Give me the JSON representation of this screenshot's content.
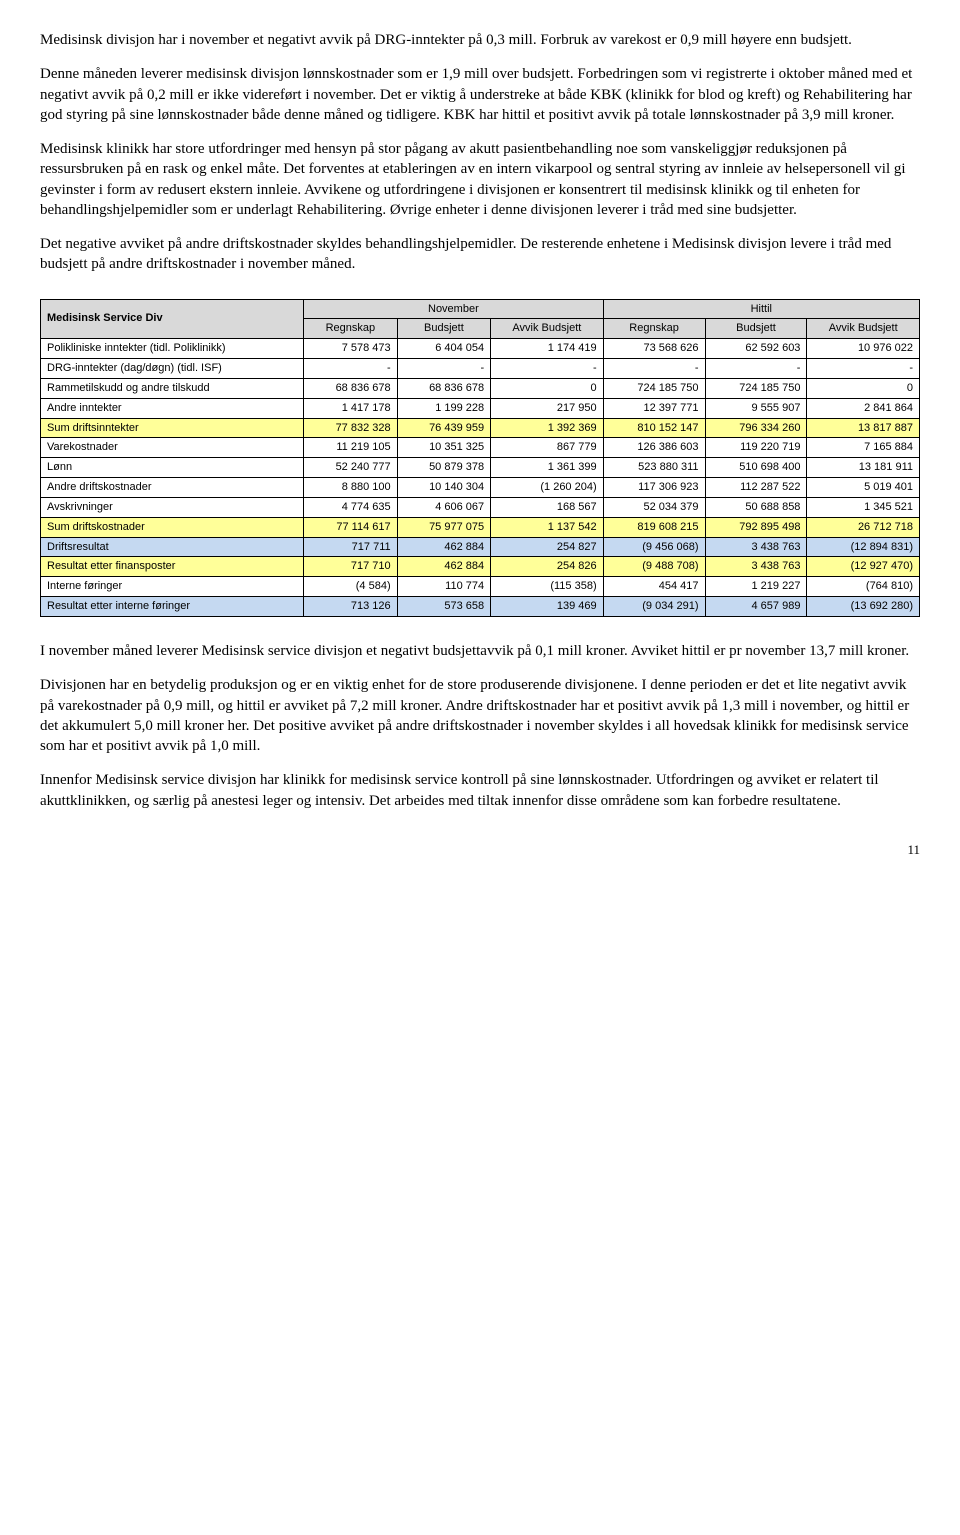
{
  "paragraphs": {
    "p1": "Medisinsk divisjon har i november et negativt avvik på DRG-inntekter på 0,3 mill. Forbruk av varekost er 0,9 mill høyere enn budsjett.",
    "p2": "Denne måneden leverer medisinsk divisjon lønnskostnader som er 1,9 mill over budsjett. Forbedringen som vi registrerte i oktober måned med et negativt avvik på 0,2 mill er ikke videreført i november. Det er viktig å understreke at både KBK (klinikk for blod og kreft) og Rehabilitering har god styring på sine lønnskostnader både denne måned og tidligere. KBK har hittil et positivt avvik på totale lønnskostnader på 3,9 mill kroner.",
    "p3": "Medisinsk klinikk har store utfordringer med hensyn på stor pågang av akutt pasientbehandling noe som vanskeliggjør reduksjonen på ressursbruken på en rask og enkel måte. Det forventes at etableringen av en intern vikarpool og sentral styring av innleie av helsepersonell vil gi gevinster i form av redusert ekstern innleie. Avvikene og utfordringene i divisjonen er konsentrert til medisinsk klinikk og til enheten for behandlingshjelpemidler som er underlagt Rehabilitering. Øvrige enheter i denne divisjonen leverer i tråd med sine budsjetter.",
    "p4": "Det negative avviket på andre driftskostnader skyldes behandlingshjelpemidler. De resterende enhetene i Medisinsk divisjon levere i tråd med budsjett på andre driftskostnader i november måned.",
    "p5": "I november måned leverer Medisinsk service divisjon et negativt budsjettavvik på 0,1 mill kroner. Avviket hittil er pr november 13,7 mill kroner.",
    "p6": "Divisjonen har en betydelig produksjon og er en viktig enhet for de store produserende divisjonene. I denne perioden er det et lite negativt avvik på varekostnader på 0,9 mill, og hittil er avviket på 7,2 mill kroner. Andre driftskostnader har et positivt avvik på 1,3 mill i november, og hittil er det akkumulert 5,0 mill kroner her.  Det positive avviket på andre driftskostnader i november skyldes i all hovedsak klinikk for medisinsk service som har et positivt avvik på 1,0 mill.",
    "p7": "Innenfor Medisinsk service divisjon har klinikk for medisinsk service kontroll på sine lønnskostnader. Utfordringen og avviket er relatert til akuttklinikken, og særlig på anestesi leger og intensiv. Det arbeides med tiltak innenfor disse områdene som kan forbedre resultatene."
  },
  "table": {
    "title": "Medisinsk Service Div",
    "group1": "November",
    "group2": "Hittil",
    "cols": [
      "Regnskap",
      "Budsjett",
      "Avvik Budsjett",
      "Regnskap",
      "Budsjett",
      "Avvik Budsjett"
    ],
    "rows": [
      {
        "label": "Polikliniske inntekter (tidl. Poliklinikk)",
        "class": "",
        "c": [
          "7 578 473",
          "6 404 054",
          "1 174 419",
          "73 568 626",
          "62 592 603",
          "10 976 022"
        ]
      },
      {
        "label": "DRG-inntekter (dag/døgn) (tidl. ISF)",
        "class": "",
        "c": [
          "-",
          "-",
          "-",
          "-",
          "-",
          "-"
        ]
      },
      {
        "label": "Rammetilskudd og andre tilskudd",
        "class": "",
        "c": [
          "68 836 678",
          "68 836 678",
          "0",
          "724 185 750",
          "724 185 750",
          "0"
        ]
      },
      {
        "label": "Andre inntekter",
        "class": "",
        "c": [
          "1 417 178",
          "1 199 228",
          "217 950",
          "12 397 771",
          "9 555 907",
          "2 841 864"
        ]
      },
      {
        "label": "Sum driftsinntekter",
        "class": "row-sum",
        "c": [
          "77 832 328",
          "76 439 959",
          "1 392 369",
          "810 152 147",
          "796 334 260",
          "13 817 887"
        ]
      },
      {
        "label": "Varekostnader",
        "class": "",
        "c": [
          "11 219 105",
          "10 351 325",
          "867 779",
          "126 386 603",
          "119 220 719",
          "7 165 884"
        ]
      },
      {
        "label": "Lønn",
        "class": "",
        "c": [
          "52 240 777",
          "50 879 378",
          "1 361 399",
          "523 880 311",
          "510 698 400",
          "13 181 911"
        ]
      },
      {
        "label": "Andre driftskostnader",
        "class": "",
        "c": [
          "8 880 100",
          "10 140 304",
          "(1 260 204)",
          "117 306 923",
          "112 287 522",
          "5 019 401"
        ]
      },
      {
        "label": "Avskrivninger",
        "class": "",
        "c": [
          "4 774 635",
          "4 606 067",
          "168 567",
          "52 034 379",
          "50 688 858",
          "1 345 521"
        ]
      },
      {
        "label": "Sum driftskostnader",
        "class": "row-sum",
        "c": [
          "77 114 617",
          "75 977 075",
          "1 137 542",
          "819 608 215",
          "792 895 498",
          "26 712 718"
        ]
      },
      {
        "label": "Driftsresultat",
        "class": "row-drift",
        "c": [
          "717 711",
          "462 884",
          "254 827",
          "(9 456 068)",
          "3 438 763",
          "(12 894 831)"
        ]
      },
      {
        "label": "Resultat etter finansposter",
        "class": "row-res",
        "c": [
          "717 710",
          "462 884",
          "254 826",
          "(9 488 708)",
          "3 438 763",
          "(12 927 470)"
        ]
      },
      {
        "label": "Interne føringer",
        "class": "",
        "c": [
          "(4 584)",
          "110 774",
          "(115 358)",
          "454 417",
          "1 219 227",
          "(764 810)"
        ]
      },
      {
        "label": "Resultat etter interne føringer",
        "class": "row-intern",
        "c": [
          "713 126",
          "573 658",
          "139 469",
          "(9 034 291)",
          "4 657 989",
          "(13 692 280)"
        ]
      }
    ]
  },
  "pagenum": "11"
}
